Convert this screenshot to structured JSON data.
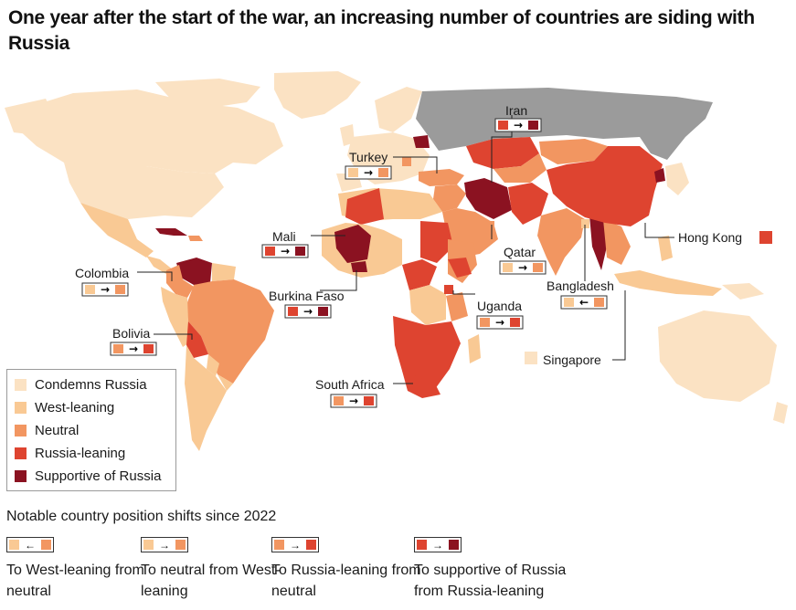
{
  "title": "One year after the start of the war, an increasing number of countries are siding with Russia",
  "colors": {
    "condemns": "#fbe2c3",
    "west": "#f9c994",
    "neutral": "#f29661",
    "leaning": "#de4430",
    "supportive": "#8b1221",
    "russia": "#9b9b9b",
    "ocean": "#ffffff"
  },
  "legend": [
    {
      "label": "Condemns Russia",
      "color": "#fbe2c3"
    },
    {
      "label": "West-leaning",
      "color": "#f9c994"
    },
    {
      "label": "Neutral",
      "color": "#f29661"
    },
    {
      "label": "Russia-leaning",
      "color": "#de4430"
    },
    {
      "label": "Supportive of Russia",
      "color": "#8b1221"
    }
  ],
  "countries": [
    {
      "name": "Iran",
      "from": "Russia-leaning",
      "to": "Supportive of Russia"
    },
    {
      "name": "Turkey",
      "from": "West-leaning",
      "to": "Neutral"
    },
    {
      "name": "Mali",
      "from": "Russia-leaning",
      "to": "Supportive of Russia"
    },
    {
      "name": "Colombia",
      "from": "West-leaning",
      "to": "Neutral"
    },
    {
      "name": "Burkina Faso",
      "from": "Russia-leaning",
      "to": "Supportive of Russia"
    },
    {
      "name": "Bolivia",
      "from": "Neutral",
      "to": "Russia-leaning"
    },
    {
      "name": "Qatar",
      "from": "West-leaning",
      "to": "Neutral"
    },
    {
      "name": "Uganda",
      "from": "Neutral",
      "to": "Russia-leaning"
    },
    {
      "name": "South Africa",
      "from": "Neutral",
      "to": "Russia-leaning"
    },
    {
      "name": "Bangladesh",
      "from": "Neutral",
      "to": "West-leaning"
    },
    {
      "name": "Hong Kong",
      "position": "Russia-leaning"
    },
    {
      "name": "Singapore",
      "position": "Condemns Russia"
    }
  ],
  "shifts_title": "Notable country position shifts since 2022",
  "shifts": [
    {
      "label": "To West-leaning from neutral",
      "arrow": "←",
      "left": "#f9c994",
      "right": "#f29661"
    },
    {
      "label": "To neutral from West-leaning",
      "arrow": "→",
      "left": "#f9c994",
      "right": "#f29661"
    },
    {
      "label": "To Russia-leaning from neutral",
      "arrow": "→",
      "left": "#f29661",
      "right": "#de4430"
    },
    {
      "label": "To supportive of Russia from Russia-leaning",
      "arrow": "→",
      "left": "#de4430",
      "right": "#8b1221"
    }
  ]
}
